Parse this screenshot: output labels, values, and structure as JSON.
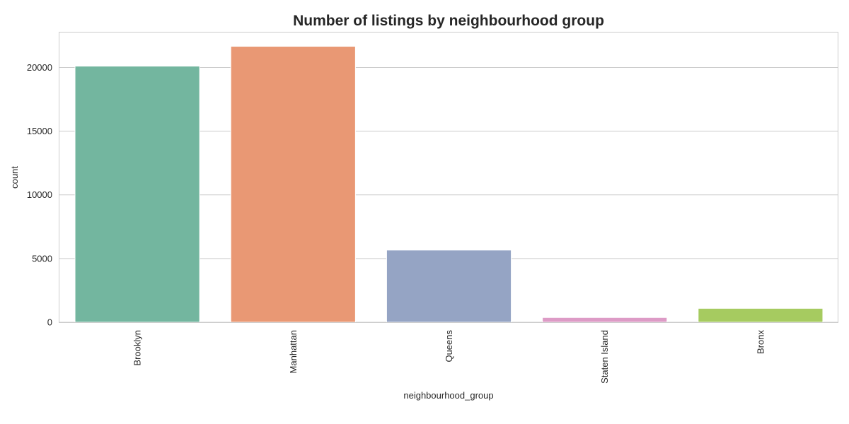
{
  "chart_data": {
    "type": "bar",
    "title": "Number of listings by neighbourhood group",
    "xlabel": "neighbourhood_group",
    "ylabel": "count",
    "categories": [
      "Brooklyn",
      "Manhattan",
      "Queens",
      "Staten Island",
      "Bronx"
    ],
    "values": [
      20104,
      21661,
      5666,
      373,
      1091
    ],
    "colors": [
      "#73b69f",
      "#e99874",
      "#95a4c4",
      "#dd9bc6",
      "#a6cb60"
    ],
    "ylim": [
      0,
      22744
    ],
    "yticks": [
      0,
      5000,
      10000,
      15000,
      20000
    ],
    "grid": true,
    "legend": "none"
  }
}
